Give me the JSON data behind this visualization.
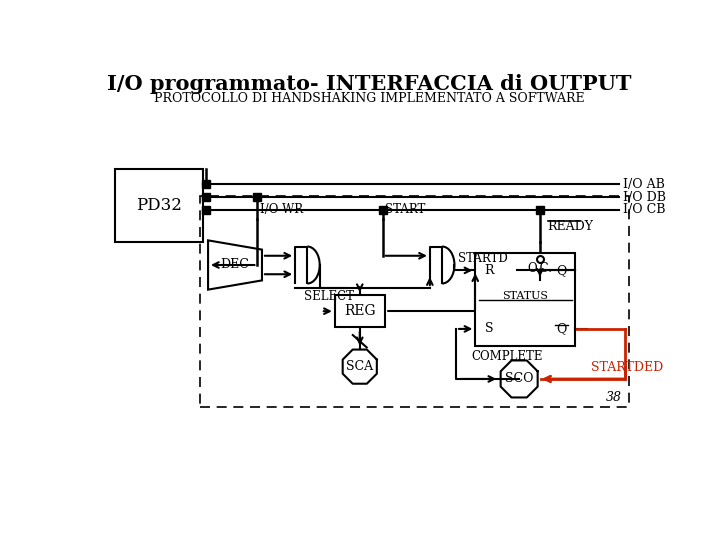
{
  "title": "I/O programmato- INTERFACCIA di OUTPUT",
  "subtitle": "PROTOCOLLO DI HANDSHAKING IMPLEMENTATO A SOFTWARE",
  "bg_color": "#ffffff",
  "line_color": "#000000",
  "red_color": "#cc2200",
  "page_number": "38"
}
